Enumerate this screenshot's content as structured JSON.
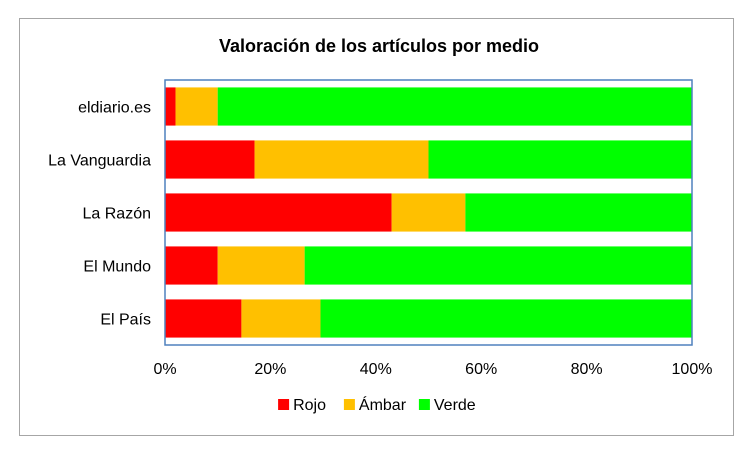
{
  "chart_data": {
    "type": "bar",
    "orientation": "horizontal",
    "stacked": "percent",
    "title": "Valoración de los artículos por medio",
    "categories": [
      "eldiario.es",
      "La Vanguardia",
      "La Razón",
      "El Mundo",
      "El País"
    ],
    "series": [
      {
        "name": "Rojo",
        "color": "#ff0000",
        "values": [
          2,
          17,
          43,
          10,
          14.5
        ]
      },
      {
        "name": "Ámbar",
        "color": "#ffc000",
        "values": [
          8,
          33,
          14,
          16.5,
          15
        ]
      },
      {
        "name": "Verde",
        "color": "#00ff00",
        "values": [
          90,
          50,
          43,
          73.5,
          70.5
        ]
      }
    ],
    "x_ticks": [
      "0%",
      "20%",
      "40%",
      "60%",
      "80%",
      "100%"
    ],
    "xlim": [
      0,
      100
    ],
    "grid": false,
    "legend_position": "bottom",
    "plot_border_color": "#4f81bd"
  }
}
